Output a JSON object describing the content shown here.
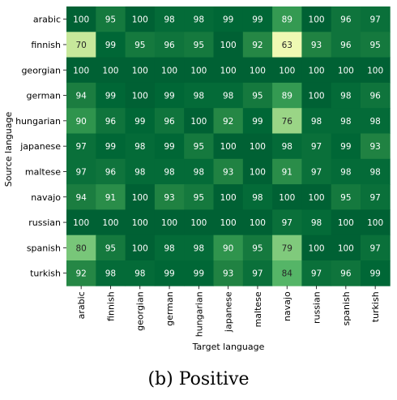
{
  "chart_data": {
    "type": "heatmap",
    "xlabel": "Target language",
    "ylabel": "Source language",
    "x_categories": [
      "arabic",
      "finnish",
      "georgian",
      "german",
      "hungarian",
      "japanese",
      "maltese",
      "navajo",
      "russian",
      "spanish",
      "turkish"
    ],
    "y_categories": [
      "arabic",
      "finnish",
      "georgian",
      "german",
      "hungarian",
      "japanese",
      "maltese",
      "navajo",
      "russian",
      "spanish",
      "turkish"
    ],
    "values": [
      [
        100,
        95,
        100,
        98,
        98,
        99,
        99,
        89,
        100,
        96,
        97
      ],
      [
        70,
        99,
        95,
        96,
        95,
        100,
        92,
        63,
        93,
        96,
        95
      ],
      [
        100,
        100,
        100,
        100,
        100,
        100,
        100,
        100,
        100,
        100,
        100
      ],
      [
        94,
        99,
        100,
        99,
        98,
        98,
        95,
        89,
        100,
        98,
        96
      ],
      [
        90,
        96,
        99,
        96,
        100,
        92,
        99,
        76,
        98,
        98,
        98
      ],
      [
        97,
        99,
        98,
        99,
        95,
        100,
        100,
        98,
        97,
        99,
        93
      ],
      [
        97,
        96,
        98,
        98,
        98,
        93,
        100,
        91,
        97,
        98,
        98
      ],
      [
        94,
        91,
        100,
        93,
        95,
        100,
        98,
        100,
        100,
        95,
        97
      ],
      [
        100,
        100,
        100,
        100,
        100,
        100,
        100,
        97,
        98,
        100,
        100
      ],
      [
        80,
        95,
        100,
        98,
        98,
        90,
        95,
        79,
        100,
        100,
        97
      ],
      [
        92,
        98,
        98,
        99,
        99,
        93,
        97,
        84,
        97,
        96,
        99
      ]
    ],
    "colormap": "YlGn",
    "vmin": 60,
    "vmax": 100,
    "grid": false,
    "colorbar": false
  },
  "caption": "(b) Positive"
}
